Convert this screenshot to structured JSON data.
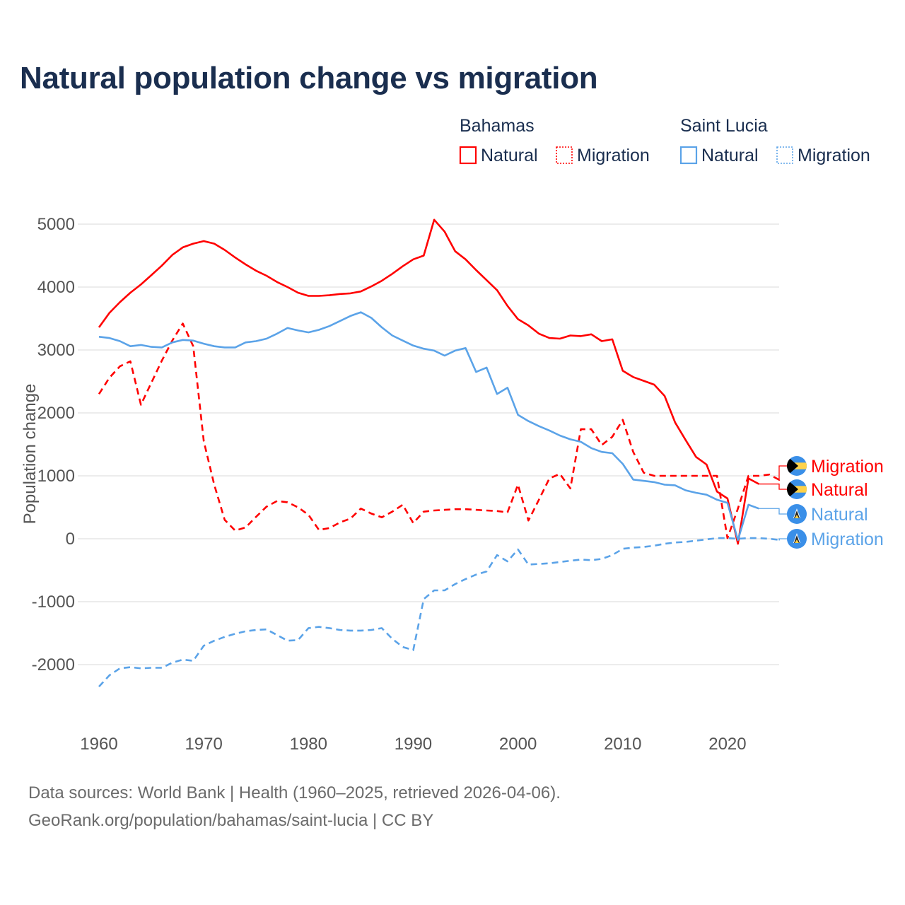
{
  "title": "Natural population change vs migration",
  "footer": {
    "line1": "Data sources: World Bank | Health (1960–2025, retrieved 2026-04-06).",
    "line2": "GeoRank.org/population/bahamas/saint-lucia | CC BY"
  },
  "legend": {
    "groups": [
      {
        "country": "Bahamas",
        "items": [
          {
            "label": "Natural",
            "style": "solid"
          },
          {
            "label": "Migration",
            "style": "dotted"
          }
        ],
        "color": "#ff0000"
      },
      {
        "country": "Saint Lucia",
        "items": [
          {
            "label": "Natural",
            "style": "solid"
          },
          {
            "label": "Migration",
            "style": "dotted"
          }
        ],
        "color": "#5ba3e8"
      }
    ]
  },
  "chart_data": {
    "type": "line",
    "title": "Natural population change vs migration",
    "xlabel": "",
    "ylabel": "Population change",
    "xlim": [
      1960,
      2025
    ],
    "ylim": [
      -2700,
      5500
    ],
    "xticks": [
      1960,
      1970,
      1980,
      1990,
      2000,
      2010,
      2020
    ],
    "yticks": [
      -2000,
      -1000,
      0,
      1000,
      2000,
      3000,
      4000,
      5000
    ],
    "grid": true,
    "legend_position": "top-right",
    "series": [
      {
        "name": "Bahamas Natural",
        "label": "Natural",
        "flag": "bahamas",
        "color": "#ff0000",
        "dash": "solid",
        "start": 1960,
        "values": [
          3360,
          3590,
          3760,
          3910,
          4040,
          4190,
          4340,
          4510,
          4630,
          4690,
          4730,
          4690,
          4590,
          4470,
          4360,
          4260,
          4180,
          4080,
          4000,
          3910,
          3860,
          3860,
          3870,
          3890,
          3900,
          3930,
          4010,
          4100,
          4210,
          4330,
          4440,
          4500,
          5070,
          4880,
          4570,
          4440,
          4270,
          4110,
          3950,
          3700,
          3490,
          3390,
          3260,
          3190,
          3180,
          3230,
          3220,
          3250,
          3140,
          3170,
          2670,
          2570,
          2510,
          2450,
          2270,
          1850,
          1570,
          1300,
          1180,
          750,
          640,
          -80,
          960,
          870
        ]
      },
      {
        "name": "Bahamas Migration",
        "label": "Migration",
        "flag": "bahamas",
        "color": "#ff0000",
        "dash": "dashed",
        "start": 1960,
        "values": [
          2300,
          2560,
          2740,
          2820,
          2130,
          2480,
          2830,
          3150,
          3420,
          3060,
          1550,
          860,
          300,
          130,
          180,
          350,
          510,
          600,
          580,
          500,
          380,
          140,
          170,
          260,
          320,
          480,
          400,
          340,
          430,
          540,
          250,
          430,
          450,
          460,
          470,
          470,
          460,
          450,
          440,
          420,
          860,
          290,
          620,
          960,
          1030,
          800,
          1740,
          1740,
          1490,
          1620,
          1890,
          1380,
          1050,
          1000,
          1000,
          1000,
          1000,
          1000,
          1000,
          1000,
          10,
          480,
          1000,
          1000,
          1020,
          930
        ]
      },
      {
        "name": "Saint Lucia Natural",
        "label": "Natural",
        "flag": "saint-lucia",
        "color": "#5ba3e8",
        "dash": "solid",
        "start": 1960,
        "values": [
          3210,
          3190,
          3140,
          3060,
          3080,
          3050,
          3040,
          3120,
          3160,
          3150,
          3100,
          3060,
          3040,
          3040,
          3120,
          3140,
          3180,
          3260,
          3350,
          3310,
          3280,
          3320,
          3380,
          3460,
          3540,
          3600,
          3510,
          3360,
          3230,
          3150,
          3070,
          3020,
          2990,
          2910,
          2990,
          3030,
          2650,
          2720,
          2300,
          2400,
          1970,
          1870,
          1790,
          1720,
          1640,
          1580,
          1540,
          1440,
          1380,
          1360,
          1190,
          940,
          920,
          900,
          860,
          850,
          770,
          730,
          700,
          620,
          570,
          -20,
          540,
          480
        ]
      },
      {
        "name": "Saint Lucia Migration",
        "label": "Migration",
        "flag": "saint-lucia",
        "color": "#5ba3e8",
        "dash": "dashed",
        "start": 1960,
        "values": [
          -2350,
          -2170,
          -2060,
          -2040,
          -2060,
          -2050,
          -2050,
          -1970,
          -1920,
          -1940,
          -1700,
          -1620,
          -1560,
          -1510,
          -1470,
          -1450,
          -1440,
          -1530,
          -1620,
          -1610,
          -1420,
          -1400,
          -1420,
          -1450,
          -1460,
          -1460,
          -1450,
          -1420,
          -1590,
          -1720,
          -1770,
          -960,
          -820,
          -820,
          -720,
          -640,
          -570,
          -520,
          -260,
          -360,
          -170,
          -410,
          -400,
          -390,
          -370,
          -350,
          -330,
          -340,
          -320,
          -260,
          -160,
          -140,
          -130,
          -110,
          -80,
          -60,
          -50,
          -30,
          -10,
          10,
          10,
          0,
          10,
          10,
          0,
          -20
        ]
      }
    ]
  }
}
